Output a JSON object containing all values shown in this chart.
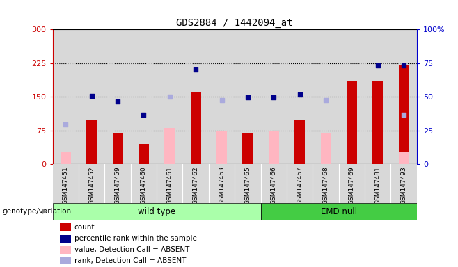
{
  "title": "GDS2884 / 1442094_at",
  "samples": [
    "GSM147451",
    "GSM147452",
    "GSM147459",
    "GSM147460",
    "GSM147461",
    "GSM147462",
    "GSM147463",
    "GSM147465",
    "GSM147466",
    "GSM147467",
    "GSM147468",
    "GSM147469",
    "GSM147481",
    "GSM147493"
  ],
  "count": [
    null,
    100,
    68,
    45,
    null,
    160,
    null,
    68,
    null,
    100,
    null,
    185,
    185,
    220
  ],
  "percentile_rank": [
    null,
    152,
    140,
    110,
    null,
    210,
    null,
    148,
    148,
    155,
    null,
    null,
    220,
    220
  ],
  "value_absent": [
    28,
    null,
    null,
    null,
    80,
    null,
    75,
    null,
    75,
    null,
    70,
    null,
    null,
    28
  ],
  "rank_absent": [
    88,
    null,
    null,
    null,
    150,
    null,
    143,
    null,
    null,
    null,
    143,
    null,
    null,
    110
  ],
  "wt_count": 8,
  "ylim_left": [
    0,
    300
  ],
  "ylim_right": [
    0,
    100
  ],
  "yticks_left": [
    0,
    75,
    150,
    225,
    300
  ],
  "yticks_right": [
    0,
    25,
    50,
    75,
    100
  ],
  "left_axis_color": "#CC0000",
  "right_axis_color": "#0000CC",
  "bar_color_count": "#CC0000",
  "bar_color_absent": "#FFB6C1",
  "dot_color_rank": "#00008B",
  "dot_color_rank_absent": "#AAAADD",
  "bg_color": "#D8D8D8",
  "wt_color": "#AAFFAA",
  "emd_color": "#44CC44",
  "genotype_label": "genotype/variation"
}
